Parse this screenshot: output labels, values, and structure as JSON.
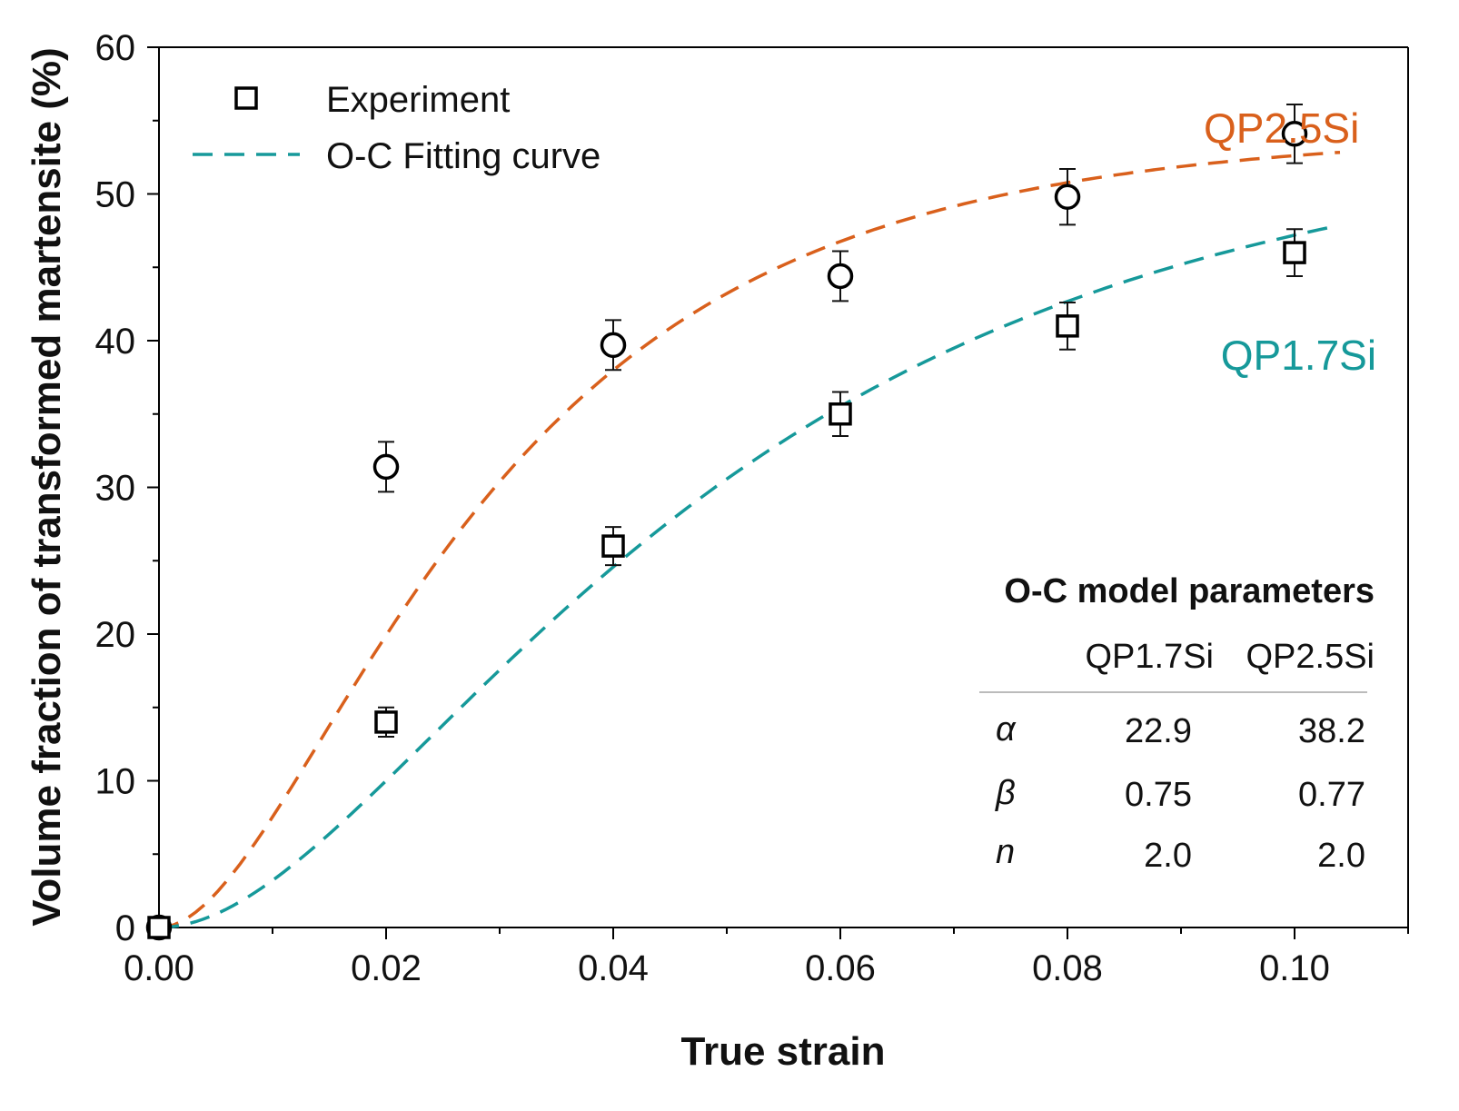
{
  "chart_data": {
    "type": "scatter",
    "title": "",
    "xlabel": "True strain",
    "ylabel": "Volume fraction of transformed martensite (%)",
    "xlim": [
      0,
      0.11
    ],
    "ylim": [
      0,
      60
    ],
    "x_ticks": [
      0.0,
      0.02,
      0.04,
      0.06,
      0.08,
      0.1
    ],
    "x_tick_labels": [
      "0.00",
      "0.02",
      "0.04",
      "0.06",
      "0.08",
      "0.10"
    ],
    "y_ticks": [
      0,
      10,
      20,
      30,
      40,
      50,
      60
    ],
    "y_tick_labels": [
      "0",
      "10",
      "20",
      "30",
      "40",
      "50",
      "60"
    ],
    "grid": false,
    "legend": {
      "position": "top-left",
      "experiment_label": "Experiment",
      "fit_label": "O-C Fitting curve"
    },
    "series": [
      {
        "name": "QP2.5Si",
        "color": "#d9601c",
        "marker": "circle",
        "points": [
          {
            "x": 0.0,
            "y": 0.0,
            "err": 0
          },
          {
            "x": 0.02,
            "y": 31.4,
            "err": 1.7
          },
          {
            "x": 0.04,
            "y": 39.7,
            "err": 1.7
          },
          {
            "x": 0.06,
            "y": 44.4,
            "err": 1.7
          },
          {
            "x": 0.08,
            "y": 49.8,
            "err": 1.9
          },
          {
            "x": 0.1,
            "y": 54.1,
            "err": 2.0
          }
        ],
        "fit": {
          "alpha": 38.2,
          "beta": 0.77,
          "n": 2.0,
          "scale": 54.2,
          "x_end": 0.104
        }
      },
      {
        "name": "QP1.7Si",
        "color": "#16999a",
        "marker": "square",
        "points": [
          {
            "x": 0.0,
            "y": 0.0,
            "err": 0
          },
          {
            "x": 0.02,
            "y": 14.0,
            "err": 1.0
          },
          {
            "x": 0.04,
            "y": 26.0,
            "err": 1.3
          },
          {
            "x": 0.06,
            "y": 35.0,
            "err": 1.5
          },
          {
            "x": 0.08,
            "y": 41.0,
            "err": 1.6
          },
          {
            "x": 0.1,
            "y": 46.0,
            "err": 1.6
          }
        ],
        "fit": {
          "alpha": 22.9,
          "beta": 0.75,
          "n": 2.0,
          "scale": 54.8,
          "x_end": 0.1035
        }
      }
    ],
    "annotations": [
      {
        "text": "QP2.5Si",
        "series": "QP2.5Si",
        "x": 0.092,
        "y": 54.5
      },
      {
        "text": "QP1.7Si",
        "series": "QP1.7Si",
        "x": 0.0935,
        "y": 39.0
      }
    ],
    "param_table": {
      "title": "O-C model parameters",
      "columns": [
        "QP1.7Si",
        "QP2.5Si"
      ],
      "rows": [
        {
          "symbol": "α",
          "values": [
            "22.9",
            "38.2"
          ]
        },
        {
          "symbol": "β",
          "values": [
            "0.75",
            "0.77"
          ]
        },
        {
          "symbol": "n",
          "values": [
            "2.0",
            "2.0"
          ]
        }
      ]
    }
  }
}
